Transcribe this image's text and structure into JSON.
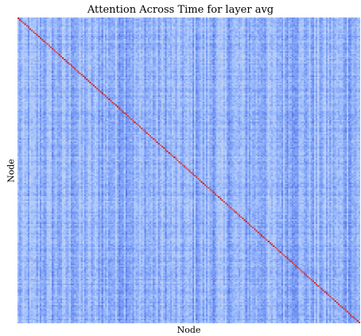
{
  "chart_data": {
    "type": "heatmap",
    "title": "Attention Across Time for layer avg",
    "xlabel": "Node",
    "ylabel": "Node",
    "grid": false,
    "legend": "none",
    "n_nodes": 200,
    "diagonal": "high",
    "off_diagonal": "low, with column-wise variation",
    "colormap": [
      "#3b4cc0",
      "#6f92f3",
      "#aac7fd",
      "#dddcdc",
      "#f7b89c",
      "#e7745b",
      "#b40426"
    ]
  }
}
